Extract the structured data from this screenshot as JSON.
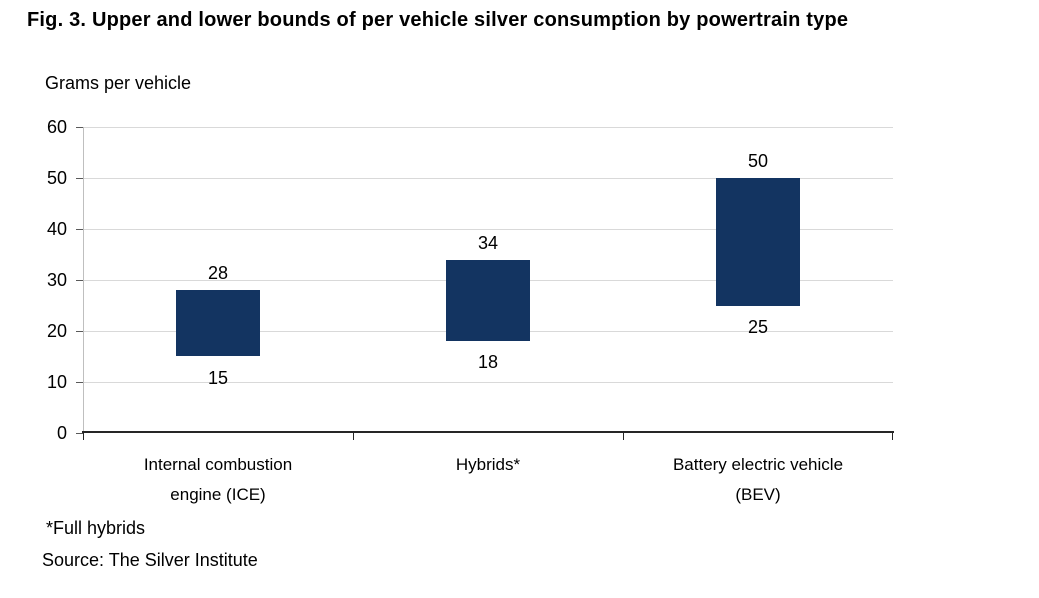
{
  "figure": {
    "title": "Fig. 3. Upper and lower bounds of per vehicle silver consumption by powertrain type",
    "y_axis_title": "Grams per vehicle",
    "footnote": "*Full hybrids",
    "source": "Source: The Silver Institute"
  },
  "chart_data": {
    "type": "bar",
    "subtype": "floating-range-bar",
    "title": "Fig. 3. Upper and lower bounds of per vehicle silver consumption by powertrain type",
    "ylabel": "Grams per vehicle",
    "xlabel": "",
    "categories": [
      "Internal combustion engine (ICE)",
      "Hybrids*",
      "Battery electric vehicle (BEV)"
    ],
    "category_label_lines": [
      [
        "Internal combustion",
        "engine (ICE)"
      ],
      [
        "Hybrids*"
      ],
      [
        "Battery electric vehicle",
        "(BEV)"
      ]
    ],
    "series": [
      {
        "name": "Lower bound",
        "values": [
          15,
          18,
          25
        ]
      },
      {
        "name": "Upper bound",
        "values": [
          28,
          34,
          50
        ]
      }
    ],
    "data_labels_shown": true,
    "ylim": [
      0,
      60
    ],
    "yticks": [
      0,
      10,
      20,
      30,
      40,
      50,
      60
    ],
    "grid": true,
    "legend": false,
    "colors": {
      "bar": "#133461",
      "gridline": "#d9d9d9",
      "y_axis_line": "#bfbfbf",
      "y_tick": "#595959",
      "x_axis_line": "#262626",
      "text": "#000000"
    }
  }
}
